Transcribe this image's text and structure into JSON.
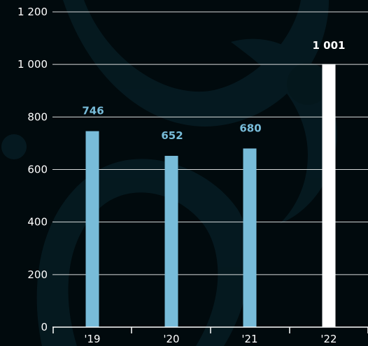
{
  "chart_data": {
    "type": "bar",
    "categories": [
      "'19",
      "'20",
      "'21",
      "'22"
    ],
    "values": [
      746,
      652,
      680,
      1001
    ],
    "value_labels": [
      "746",
      "652",
      "680",
      "1 001"
    ],
    "y_ticks": [
      0,
      200,
      400,
      600,
      800,
      1000,
      1200
    ],
    "y_tick_labels": [
      "0",
      "200",
      "400",
      "600",
      "800",
      "1 000",
      "1 200"
    ],
    "ylim": [
      0,
      1200
    ],
    "grid": true,
    "title": "",
    "xlabel": "",
    "ylabel": "",
    "colors": {
      "background": "#010a0d",
      "bar": "#78bcd9",
      "bar_highlight": "#ffffff",
      "label": "#78bcd9",
      "label_highlight": "#ffffff",
      "grid": "#ffffff",
      "decoration": "#0a2a33"
    },
    "highlight_index": 3
  }
}
